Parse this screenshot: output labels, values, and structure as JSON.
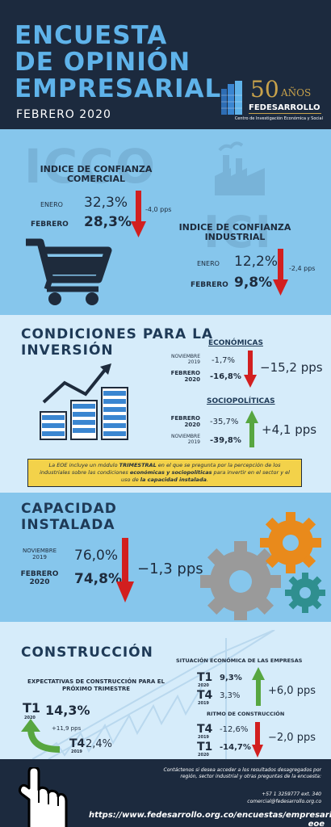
{
  "header": {
    "title_line1": "ENCUESTA",
    "title_line2": "DE OPINIÓN",
    "title_line3": "EMPRESARIAL",
    "subtitle": "FEBRERO 2020",
    "logo_number": "50",
    "logo_anos": "AÑOS",
    "logo_name": "FEDESARROLLO",
    "logo_tagline": "Centro de Investigación Económica y Social"
  },
  "icco": {
    "bg_text": "ICCO",
    "heading": "INDICE DE CONFIANZA COMERCIAL",
    "row1_label": "ENERO",
    "row1_value": "32,3%",
    "row2_label": "FEBRERO",
    "row2_value": "28,3%",
    "delta": "-4,0 pps"
  },
  "ici": {
    "bg_text": "ICI",
    "heading": "INDICE DE CONFIANZA INDUSTRIAL",
    "row1_label": "ENERO",
    "row1_value": "12,2%",
    "row2_label": "FEBRERO",
    "row2_value": "9,8%",
    "delta": "-2,4 pps"
  },
  "inversion": {
    "heading_line1": "CONDICIONES PARA LA",
    "heading_line2": "INVERSIÓN",
    "economicas": {
      "heading": "ECONÓMICAS",
      "row1_label_a": "NOVIEMBRE",
      "row1_label_b": "2019",
      "row1_value": "-1,7%",
      "row2_label_a": "FEBRERO",
      "row2_label_b": "2020",
      "row2_value": "-16,8%",
      "delta": "−15,2 pps"
    },
    "sociopoliticas": {
      "heading": "SOCIOPOLÍTICAS",
      "row1_label_a": "FEBRERO",
      "row1_label_b": "2020",
      "row1_value": "-35,7%",
      "row2_label_a": "NOVIEMBRE",
      "row2_label_b": "2019",
      "row2_value": "-39,8%",
      "delta": "+4,1 pps"
    },
    "note_a": "La EOE incluye un módulo ",
    "note_b": "TRIMESTRAL",
    "note_c": " en el que se pregunta por la percepción de los industriales sobre las condiciones ",
    "note_d": "económicas y sociopolíticas",
    "note_e": " para invertir en el sector y el uso de ",
    "note_f": "la capacidad instalada",
    "note_g": "."
  },
  "capacidad": {
    "heading_line1": "CAPACIDAD",
    "heading_line2": "INSTALADA",
    "row1_label_a": "NOVIEMBRE",
    "row1_label_b": "2019",
    "row1_value": "76,0%",
    "row2_label_a": "FEBRERO",
    "row2_label_b": "2020",
    "row2_value": "74,8%",
    "delta": "−1,3 pps"
  },
  "construccion": {
    "heading": "CONSTRUCCIÓN",
    "expectativas": {
      "heading": "EXPECTATIVAS DE CONSTRUCCIÓN PARA EL PRÓXIMO TRIMESTRE",
      "t1_label": "T1",
      "t1_year": "2020",
      "t1_value": "14,3%",
      "t4_label": "T4",
      "t4_year": "2019",
      "t4_value": "2,4%",
      "delta": "+11,9 pps"
    },
    "situacion": {
      "heading": "SITUACIÓN ECONÓMICA DE LAS EMPRESAS",
      "t1_label": "T1",
      "t1_year": "2020",
      "t1_value": "9,3%",
      "t4_label": "T4",
      "t4_year": "2019",
      "t4_value": "3,3%",
      "delta": "+6,0 pps"
    },
    "ritmo": {
      "heading": "RITMO DE CONSTRUCCIÓN",
      "t4_label": "T4",
      "t4_year": "2019",
      "t4_value": "-12,6%",
      "t1_label": "T1",
      "t1_year": "2020",
      "t1_value": "-14,7%",
      "delta": "−2,0 pps"
    }
  },
  "footer": {
    "contact_line1": "Contáctenos si desea acceder a los resultados desagregados por",
    "contact_line2": "región, sector industrial y otras preguntas de la encuesta:",
    "phone": "+57 1 3259777 ext. 340",
    "email": "comercial@fedesarrollo.org.co",
    "url": "https://www.fedesarrollo.org.co/encuestas/empresarial-eoe"
  },
  "colors": {
    "navy": "#1c2a3e",
    "title_blue": "#5fb3ea",
    "panel_blue": "#86c6ec",
    "panel_light": "#d6ecfa",
    "arrow_red": "#d21f1f",
    "arrow_green": "#57a640",
    "note_yellow": "#f3d24a",
    "gold": "#c8a24b"
  },
  "icons": [
    "shopping-cart-icon",
    "factory-icon",
    "growth-coins-icon",
    "gears-icon",
    "crane-icon",
    "pointing-hand-icon"
  ]
}
